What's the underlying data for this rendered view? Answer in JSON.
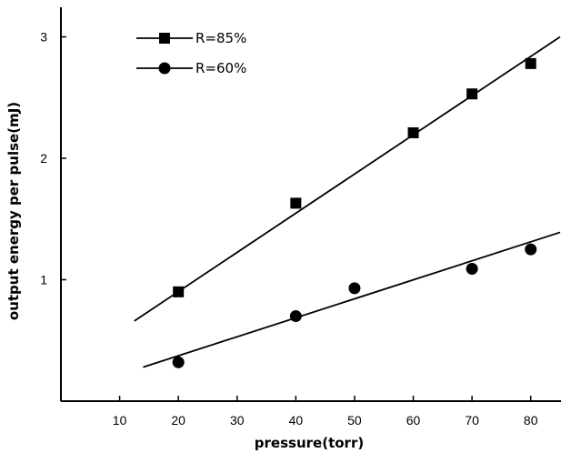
{
  "chart_data": {
    "type": "scatter",
    "title": "",
    "xlabel": "pressure(torr)",
    "ylabel": "output energy per pulse(mJ)",
    "xlim": [
      0,
      85
    ],
    "ylim": [
      0,
      3.25
    ],
    "x_ticks": [
      10,
      20,
      30,
      40,
      50,
      60,
      70,
      80
    ],
    "x_tick_labels": [
      "10",
      "20",
      "30",
      "40",
      "50",
      "60",
      "70",
      "80"
    ],
    "y_ticks": [
      1,
      2,
      3
    ],
    "y_tick_labels": [
      "1",
      "2",
      "3"
    ],
    "grid": false,
    "legend_position": "top-left",
    "series": [
      {
        "name": "R=85%",
        "marker": "square",
        "points": [
          {
            "x": 20,
            "y": 0.9
          },
          {
            "x": 40,
            "y": 1.63
          },
          {
            "x": 60,
            "y": 2.21
          },
          {
            "x": 70,
            "y": 2.53
          },
          {
            "x": 80,
            "y": 2.78
          }
        ],
        "fit_line": [
          {
            "x": 12.5,
            "y": 0.66
          },
          {
            "x": 85,
            "y": 3.0
          }
        ]
      },
      {
        "name": "R=60%",
        "marker": "circle",
        "points": [
          {
            "x": 20,
            "y": 0.32
          },
          {
            "x": 40,
            "y": 0.7
          },
          {
            "x": 50,
            "y": 0.93
          },
          {
            "x": 70,
            "y": 1.09
          },
          {
            "x": 80,
            "y": 1.25
          }
        ],
        "fit_line": [
          {
            "x": 14,
            "y": 0.28
          },
          {
            "x": 85,
            "y": 1.39
          }
        ]
      }
    ]
  }
}
